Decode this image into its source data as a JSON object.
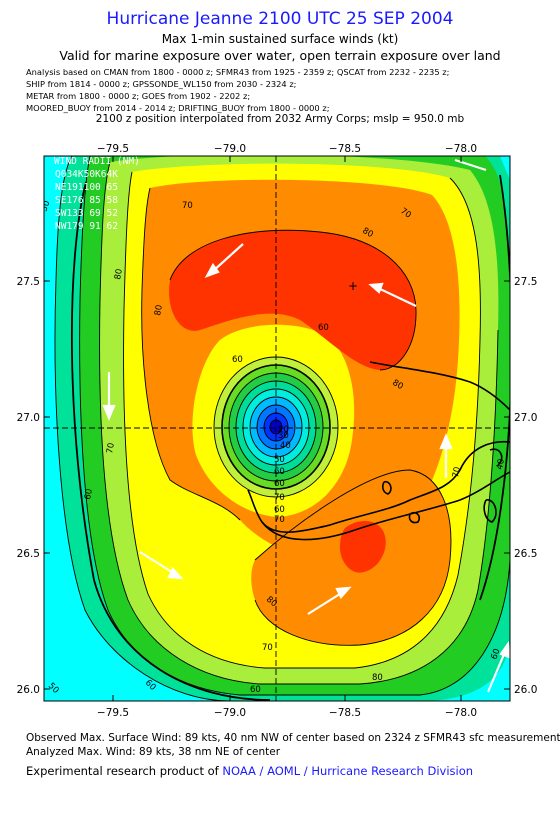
{
  "title": "Hurricane Jeanne 2100 UTC 25 SEP 2004",
  "subtitle": "Max 1-min sustained surface winds (kt)",
  "validity": "Valid for marine exposure over water, open terrain exposure over land",
  "sources": [
    "Analysis based on  CMAN from 1800 - 0000 z;  SFMR43 from 1925 - 2359 z;  QSCAT from 2232 - 2235 z;",
    "SHIP from 1814 - 0000 z;  GPSSONDE_WL150 from 2030 - 2324 z;",
    "METAR from 1800 - 0000 z;  GOES from 1902 - 2202 z;",
    "MOORED_BUOY from 2014 - 2014 z;  DRIFTING_BUOY from 1800 - 0000 z;"
  ],
  "position_note": "2100 z position interpolated from 2032 Army Corps; mslp = 950.0 mb",
  "map": {
    "lon_ticks": [
      "−79.5",
      "−79.0",
      "−78.5",
      "−78.0"
    ],
    "lat_ticks": [
      "27.5",
      "27.0",
      "26.5",
      "26.0"
    ],
    "wind_radii": {
      "header": "WIND RADII (NM)",
      "rows": [
        "Q034K50K64K",
        "NE191100 65",
        "SE176 85 58",
        "SW133 69 52",
        "NW179 91 62"
      ]
    },
    "contour_labels": [
      "50",
      "70",
      "80",
      "60",
      "80",
      "60",
      "70",
      "60",
      "80",
      "80",
      "70",
      "80",
      "70",
      "60",
      "60",
      "50",
      "60",
      "70",
      "40",
      "50",
      "60",
      "60",
      "70",
      "40",
      "30",
      "20",
      "60",
      "70",
      "80"
    ],
    "colors": {
      "cyan": "#00ffff",
      "teal": "#00e29a",
      "green": "#22cc22",
      "light_green": "#a8ee3a",
      "yellow": "#ffff00",
      "orange": "#ff8c00",
      "red_orange": "#ff3300",
      "eye_blue": "#0033ff"
    }
  },
  "footer": {
    "observed": "Observed Max. Surface Wind: 89 kts, 40 nm NW of center based on 2324 z SFMR43 sfc measurement",
    "analyzed": "Analyzed Max. Wind: 89 kts, 38 nm NE of center",
    "credit_prefix": "Experimental research product of ",
    "credit_org": "NOAA / AOML / Hurricane Research Division"
  }
}
